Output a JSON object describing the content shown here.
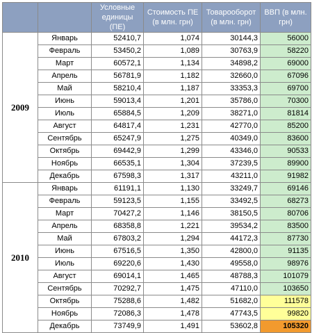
{
  "headers": {
    "col1": "",
    "col2": "",
    "units_label": "Условные единицы (ПЕ)",
    "cost_label": "Стоимость ПЕ (в млн. грн)",
    "turnover_label": "Товарооборот (в млн. грн)",
    "gdp_label": "ВВП (в млн. грн)"
  },
  "colors": {
    "header_bg": "#8da0c0",
    "gdp_bg": "#cdeccd",
    "highlight_yellow": "#ffff99",
    "highlight_orange": "#f29a2e"
  },
  "years": [
    {
      "year": "2009",
      "rows": [
        {
          "month": "Январь",
          "units": "52410,7",
          "cost": "1,074",
          "turnover": "30144,3",
          "gdp": "56000",
          "hl": ""
        },
        {
          "month": "Февраль",
          "units": "53450,2",
          "cost": "1,089",
          "turnover": "30763,9",
          "gdp": "58220",
          "hl": ""
        },
        {
          "month": "Март",
          "units": "60572,1",
          "cost": "1,134",
          "turnover": "34898,2",
          "gdp": "69000",
          "hl": ""
        },
        {
          "month": "Апрель",
          "units": "56781,9",
          "cost": "1,182",
          "turnover": "32660,0",
          "gdp": "67096",
          "hl": ""
        },
        {
          "month": "Май",
          "units": "58210,4",
          "cost": "1,187",
          "turnover": "33353,3",
          "gdp": "69700",
          "hl": ""
        },
        {
          "month": "Июнь",
          "units": "59013,4",
          "cost": "1,201",
          "turnover": "35786,0",
          "gdp": "70300",
          "hl": ""
        },
        {
          "month": "Июль",
          "units": "65884,5",
          "cost": "1,209",
          "turnover": "38271,0",
          "gdp": "81814",
          "hl": ""
        },
        {
          "month": "Август",
          "units": "64817,4",
          "cost": "1,231",
          "turnover": "42770,0",
          "gdp": "85200",
          "hl": ""
        },
        {
          "month": "Сентябрь",
          "units": "65247,9",
          "cost": "1,275",
          "turnover": "40349,0",
          "gdp": "83600",
          "hl": ""
        },
        {
          "month": "Октябрь",
          "units": "69442,9",
          "cost": "1,299",
          "turnover": "43346,0",
          "gdp": "90533",
          "hl": ""
        },
        {
          "month": "Ноябрь",
          "units": "66535,1",
          "cost": "1,304",
          "turnover": "37239,5",
          "gdp": "89900",
          "hl": ""
        },
        {
          "month": "Декабрь",
          "units": "67598,3",
          "cost": "1,317",
          "turnover": "43211,0",
          "gdp": "91982",
          "hl": ""
        }
      ]
    },
    {
      "year": "2010",
      "rows": [
        {
          "month": "Январь",
          "units": "61191,1",
          "cost": "1,130",
          "turnover": "33249,7",
          "gdp": "69146",
          "hl": ""
        },
        {
          "month": "Февраль",
          "units": "59123,5",
          "cost": "1,155",
          "turnover": "33492,5",
          "gdp": "68273",
          "hl": ""
        },
        {
          "month": "Март",
          "units": "70427,2",
          "cost": "1,146",
          "turnover": "38150,5",
          "gdp": "80706",
          "hl": ""
        },
        {
          "month": "Апрель",
          "units": "68358,8",
          "cost": "1,221",
          "turnover": "39534,2",
          "gdp": "83500",
          "hl": ""
        },
        {
          "month": "Май",
          "units": "67803,2",
          "cost": "1,294",
          "turnover": "44172,3",
          "gdp": "87730",
          "hl": ""
        },
        {
          "month": "Июнь",
          "units": "67516,5",
          "cost": "1,350",
          "turnover": "42800,0",
          "gdp": "91135",
          "hl": ""
        },
        {
          "month": "Июль",
          "units": "69220,6",
          "cost": "1,430",
          "turnover": "49558,0",
          "gdp": "98976",
          "hl": ""
        },
        {
          "month": "Август",
          "units": "69014,1",
          "cost": "1,465",
          "turnover": "48788,3",
          "gdp": "101079",
          "hl": ""
        },
        {
          "month": "Сентябрь",
          "units": "70292,7",
          "cost": "1,475",
          "turnover": "47110,0",
          "gdp": "103650",
          "hl": ""
        },
        {
          "month": "Октябрь",
          "units": "75288,6",
          "cost": "1,482",
          "turnover": "51682,0",
          "gdp": "111578",
          "hl": "yellow"
        },
        {
          "month": "Ноябрь",
          "units": "72086,3",
          "cost": "1,478",
          "turnover": "47743,5",
          "gdp": "99820",
          "hl": "yellow"
        },
        {
          "month": "Декабрь",
          "units": "73749,9",
          "cost": "1,491",
          "turnover": "53602,8",
          "gdp": "105320",
          "hl": "orange"
        }
      ]
    }
  ]
}
